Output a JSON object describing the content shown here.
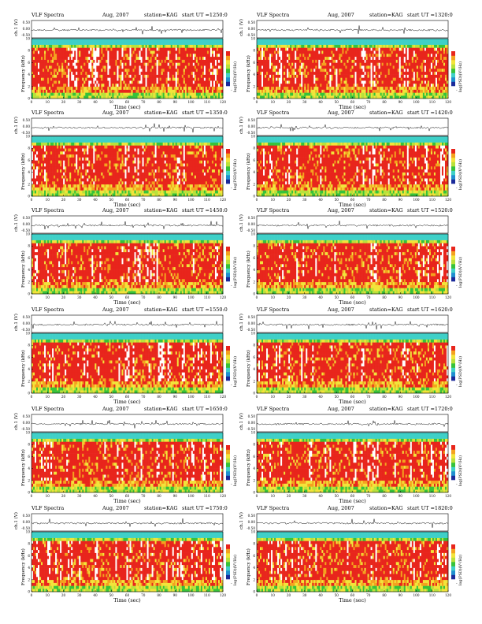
{
  "page": {
    "background": "#ffffff"
  },
  "labels": {
    "spectra": "VLF Spectra",
    "month_year": "Aug, 2007",
    "station": "station=KAG",
    "start_prefix": "start  UT",
    "time_axis": "Time (sec)",
    "freq_axis": "Frequency (kHz)",
    "wave_axis": "ch.1 (V)",
    "colorbar_label": "log(PSD)(V²/Hz)",
    "colorbar_end": "-"
  },
  "colors": {
    "colormap": [
      "#1a2a9a",
      "#1f8fd0",
      "#3fd0c8",
      "#36c23a",
      "#b8e13a",
      "#f2e43a",
      "#f4a21e",
      "#e8251c",
      "#ffffff"
    ],
    "waveform": "#111111"
  },
  "chart_data": [
    {
      "type": "heatmap",
      "start_ut": "1250:0",
      "xlim": [
        0,
        120
      ],
      "ylim_freq": [
        0,
        10
      ],
      "ylim_wave": [
        -0.5,
        0.5
      ],
      "xticks": [
        0,
        10,
        20,
        30,
        40,
        50,
        60,
        70,
        80,
        90,
        100,
        110,
        120
      ],
      "yticks_freq": [
        0,
        2,
        4,
        6,
        8,
        10
      ],
      "yticks_wave": [
        "0.50",
        "0.00",
        "-0.50"
      ]
    },
    {
      "type": "heatmap",
      "start_ut": "1320:0",
      "xlim": [
        0,
        120
      ],
      "ylim_freq": [
        0,
        10
      ],
      "ylim_wave": [
        -0.5,
        0.5
      ],
      "xticks": [
        0,
        10,
        20,
        30,
        40,
        50,
        60,
        70,
        80,
        90,
        100,
        110,
        120
      ],
      "yticks_freq": [
        0,
        2,
        4,
        6,
        8,
        10
      ],
      "yticks_wave": [
        "0.50",
        "0.00",
        "-0.50"
      ]
    },
    {
      "type": "heatmap",
      "start_ut": "1350:0",
      "xlim": [
        0,
        120
      ],
      "ylim_freq": [
        0,
        10
      ],
      "ylim_wave": [
        -0.5,
        0.5
      ],
      "xticks": [
        0,
        10,
        20,
        30,
        40,
        50,
        60,
        70,
        80,
        90,
        100,
        110,
        120
      ],
      "yticks_freq": [
        0,
        2,
        4,
        6,
        8,
        10
      ],
      "yticks_wave": [
        "0.50",
        "0.00",
        "-0.50"
      ]
    },
    {
      "type": "heatmap",
      "start_ut": "1420:0",
      "xlim": [
        0,
        120
      ],
      "ylim_freq": [
        0,
        10
      ],
      "ylim_wave": [
        -0.5,
        0.5
      ],
      "xticks": [
        0,
        10,
        20,
        30,
        40,
        50,
        60,
        70,
        80,
        90,
        100,
        110,
        120
      ],
      "yticks_freq": [
        0,
        2,
        4,
        6,
        8,
        10
      ],
      "yticks_wave": [
        "0.50",
        "0.00",
        "-0.50"
      ]
    },
    {
      "type": "heatmap",
      "start_ut": "1450:0",
      "xlim": [
        0,
        120
      ],
      "ylim_freq": [
        0,
        10
      ],
      "ylim_wave": [
        -0.5,
        0.5
      ],
      "xticks": [
        0,
        10,
        20,
        30,
        40,
        50,
        60,
        70,
        80,
        90,
        100,
        110,
        120
      ],
      "yticks_freq": [
        0,
        2,
        4,
        6,
        8,
        10
      ],
      "yticks_wave": [
        "0.50",
        "0.00",
        "-0.50"
      ]
    },
    {
      "type": "heatmap",
      "start_ut": "1520:0",
      "xlim": [
        0,
        120
      ],
      "ylim_freq": [
        0,
        10
      ],
      "ylim_wave": [
        -0.5,
        0.5
      ],
      "xticks": [
        0,
        10,
        20,
        30,
        40,
        50,
        60,
        70,
        80,
        90,
        100,
        110,
        120
      ],
      "yticks_freq": [
        0,
        2,
        4,
        6,
        8,
        10
      ],
      "yticks_wave": [
        "0.50",
        "0.00",
        "-0.50"
      ]
    },
    {
      "type": "heatmap",
      "start_ut": "1550:0",
      "xlim": [
        0,
        120
      ],
      "ylim_freq": [
        0,
        10
      ],
      "ylim_wave": [
        -0.5,
        0.5
      ],
      "xticks": [
        0,
        10,
        20,
        30,
        40,
        50,
        60,
        70,
        80,
        90,
        100,
        110,
        120
      ],
      "yticks_freq": [
        0,
        2,
        4,
        6,
        8,
        10
      ],
      "yticks_wave": [
        "0.50",
        "0.00",
        "-0.50"
      ]
    },
    {
      "type": "heatmap",
      "start_ut": "1620:0",
      "xlim": [
        0,
        120
      ],
      "ylim_freq": [
        0,
        10
      ],
      "ylim_wave": [
        -0.5,
        0.5
      ],
      "xticks": [
        0,
        10,
        20,
        30,
        40,
        50,
        60,
        70,
        80,
        90,
        100,
        110,
        120
      ],
      "yticks_freq": [
        0,
        2,
        4,
        6,
        8,
        10
      ],
      "yticks_wave": [
        "0.50",
        "0.00",
        "-0.50"
      ]
    },
    {
      "type": "heatmap",
      "start_ut": "1650:0",
      "xlim": [
        0,
        120
      ],
      "ylim_freq": [
        0,
        10
      ],
      "ylim_wave": [
        -0.5,
        0.5
      ],
      "xticks": [
        0,
        10,
        20,
        30,
        40,
        50,
        60,
        70,
        80,
        90,
        100,
        110,
        120
      ],
      "yticks_freq": [
        0,
        2,
        4,
        6,
        8,
        10
      ],
      "yticks_wave": [
        "0.50",
        "0.00",
        "-0.50"
      ]
    },
    {
      "type": "heatmap",
      "start_ut": "1720:0",
      "xlim": [
        0,
        120
      ],
      "ylim_freq": [
        0,
        10
      ],
      "ylim_wave": [
        -0.5,
        0.5
      ],
      "xticks": [
        0,
        10,
        20,
        30,
        40,
        50,
        60,
        70,
        80,
        90,
        100,
        110,
        120
      ],
      "yticks_freq": [
        0,
        2,
        4,
        6,
        8,
        10
      ],
      "yticks_wave": [
        "0.50",
        "0.00",
        "-0.50"
      ]
    },
    {
      "type": "heatmap",
      "start_ut": "1750:0",
      "xlim": [
        0,
        120
      ],
      "ylim_freq": [
        0,
        10
      ],
      "ylim_wave": [
        -0.5,
        0.5
      ],
      "xticks": [
        0,
        10,
        20,
        30,
        40,
        50,
        60,
        70,
        80,
        90,
        100,
        110,
        120
      ],
      "yticks_freq": [
        0,
        2,
        4,
        6,
        8,
        10
      ],
      "yticks_wave": [
        "0.50",
        "0.00",
        "-0.50"
      ]
    },
    {
      "type": "heatmap",
      "start_ut": "1820:0",
      "xlim": [
        0,
        120
      ],
      "ylim_freq": [
        0,
        10
      ],
      "ylim_wave": [
        -0.5,
        0.5
      ],
      "xticks": [
        0,
        10,
        20,
        30,
        40,
        50,
        60,
        70,
        80,
        90,
        100,
        110,
        120
      ],
      "yticks_freq": [
        0,
        2,
        4,
        6,
        8,
        10
      ],
      "yticks_wave": [
        "0.50",
        "0.00",
        "-0.50"
      ]
    }
  ]
}
